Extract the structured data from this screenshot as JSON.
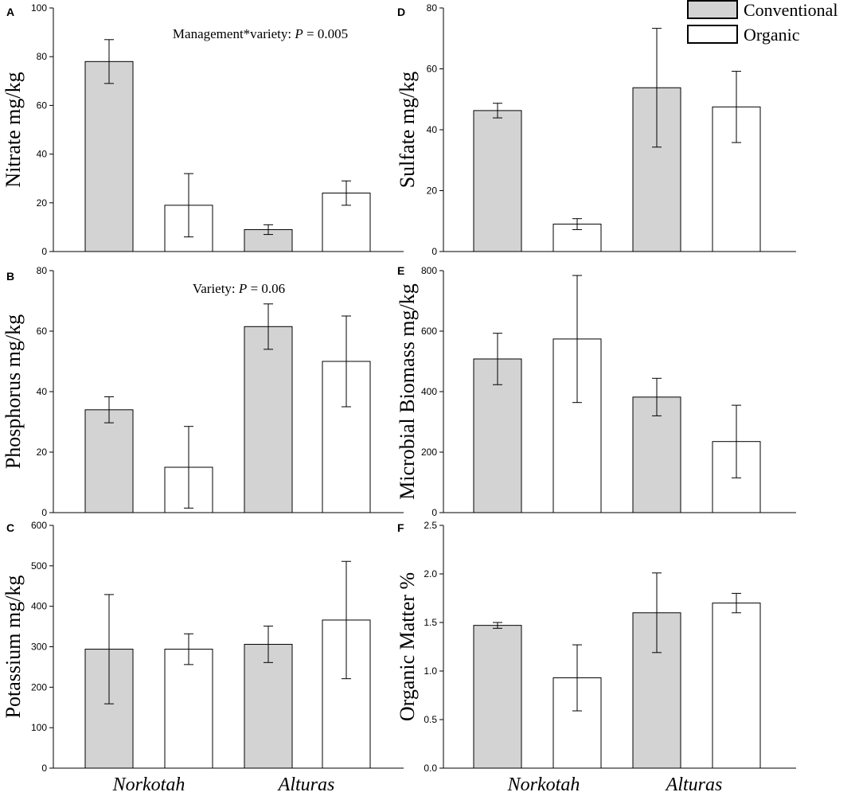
{
  "chart_data": [
    {
      "id": "A",
      "panel_label": "A",
      "type": "bar",
      "ylabel": "Nitrate mg/kg",
      "ylim": [
        0,
        100
      ],
      "yticks": [
        0,
        20,
        40,
        60,
        80,
        100
      ],
      "ytick_labels": [
        "0",
        "20",
        "40",
        "60",
        "80",
        "100"
      ],
      "series": [
        {
          "name": "Conventional",
          "values": [
            78,
            9
          ],
          "errors": [
            9,
            2
          ]
        },
        {
          "name": "Organic",
          "values": [
            19,
            24
          ],
          "errors": [
            13,
            5
          ]
        }
      ],
      "annotation": {
        "prefix": "Management*variety: ",
        "italic": "P",
        "suffix": " = 0.005"
      }
    },
    {
      "id": "B",
      "panel_label": "B",
      "type": "bar",
      "ylabel": "Phosphorus mg/kg",
      "ylim": [
        0,
        80
      ],
      "yticks": [
        0,
        20,
        40,
        60,
        80
      ],
      "ytick_labels": [
        "0",
        "20",
        "40",
        "60",
        "80"
      ],
      "series": [
        {
          "name": "Conventional",
          "values": [
            34,
            61.5
          ],
          "errors": [
            4.3,
            7.5
          ]
        },
        {
          "name": "Organic",
          "values": [
            15,
            50
          ],
          "errors": [
            13.5,
            15
          ]
        }
      ],
      "annotation": {
        "prefix": "Variety: ",
        "italic": "P",
        "suffix": " = 0.06"
      }
    },
    {
      "id": "C",
      "panel_label": "C",
      "type": "bar",
      "ylabel": "Potassium mg/kg",
      "ylim": [
        0,
        600
      ],
      "yticks": [
        0,
        100,
        200,
        300,
        400,
        500,
        600
      ],
      "ytick_labels": [
        "0",
        "100",
        "200",
        "300",
        "400",
        "500",
        "600"
      ],
      "series": [
        {
          "name": "Conventional",
          "values": [
            294,
            306
          ],
          "errors": [
            135,
            45
          ]
        },
        {
          "name": "Organic",
          "values": [
            294,
            366
          ],
          "errors": [
            38,
            145
          ]
        }
      ],
      "annotation": null
    },
    {
      "id": "D",
      "panel_label": "D",
      "type": "bar",
      "ylabel": "Sulfate mg/kg",
      "ylim": [
        0,
        80
      ],
      "yticks": [
        0,
        20,
        40,
        60,
        80
      ],
      "ytick_labels": [
        "0",
        "20",
        "40",
        "60",
        "80"
      ],
      "series": [
        {
          "name": "Conventional",
          "values": [
            46.3,
            53.8
          ],
          "errors": [
            2.4,
            19.5
          ]
        },
        {
          "name": "Organic",
          "values": [
            9,
            47.5
          ],
          "errors": [
            1.8,
            11.7
          ]
        }
      ],
      "annotation": null
    },
    {
      "id": "E",
      "panel_label": "E",
      "type": "bar",
      "ylabel": "Microbial Biomass mg/kg",
      "ylim": [
        0,
        800
      ],
      "yticks": [
        0,
        200,
        400,
        600,
        800
      ],
      "ytick_labels": [
        "0",
        "200",
        "400",
        "600",
        "800"
      ],
      "series": [
        {
          "name": "Conventional",
          "values": [
            508,
            382
          ],
          "errors": [
            85,
            62
          ]
        },
        {
          "name": "Organic",
          "values": [
            574,
            235
          ],
          "errors": [
            210,
            120
          ]
        }
      ],
      "annotation": null
    },
    {
      "id": "F",
      "panel_label": "F",
      "type": "bar",
      "ylabel": "Organic Matter %",
      "ylim": [
        0,
        2.5
      ],
      "yticks": [
        0,
        0.5,
        1.0,
        1.5,
        2.0,
        2.5
      ],
      "ytick_labels": [
        "0.0",
        "0.5",
        "1.0",
        "1.5",
        "2.0",
        "2.5"
      ],
      "series": [
        {
          "name": "Conventional",
          "values": [
            1.47,
            1.6
          ],
          "errors": [
            0.03,
            0.41
          ]
        },
        {
          "name": "Organic",
          "values": [
            0.93,
            1.7
          ],
          "errors": [
            0.34,
            0.1
          ]
        }
      ],
      "annotation": null
    }
  ],
  "categories": [
    "Norkotah",
    "Alturas"
  ],
  "legend": [
    {
      "label": "Conventional",
      "color": "#d3d3d3"
    },
    {
      "label": "Organic",
      "color": "#ffffff"
    }
  ],
  "colors": {
    "conventional": "#d3d3d3",
    "organic": "#ffffff",
    "stroke": "#000000"
  }
}
